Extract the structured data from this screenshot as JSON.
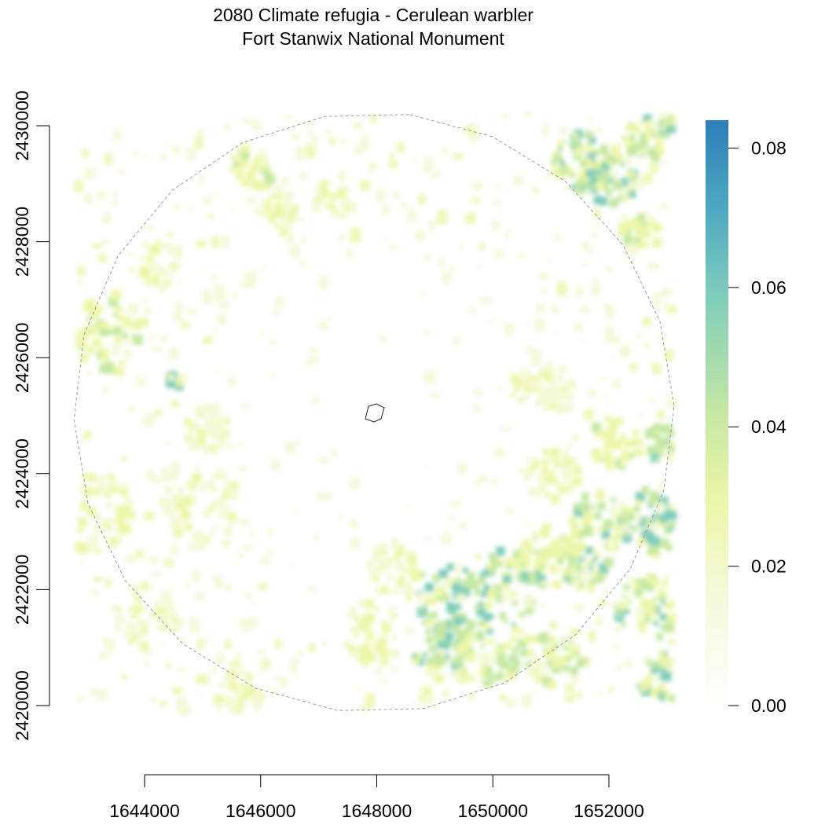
{
  "title": {
    "line1": "2080 Climate refugia - Cerulean warbler",
    "line2": "Fort Stanwix National Monument"
  },
  "x_axis": {
    "ticks": [
      1644000,
      1646000,
      1648000,
      1650000,
      1652000
    ],
    "labels": [
      "1644000",
      "1646000",
      "1648000",
      "1650000",
      "1652000"
    ]
  },
  "y_axis": {
    "ticks": [
      2420000,
      2422000,
      2424000,
      2426000,
      2428000,
      2430000
    ],
    "labels": [
      "2420000",
      "2422000",
      "2424000",
      "2426000",
      "2428000",
      "2430000"
    ]
  },
  "legend": {
    "ticks": [
      0.0,
      0.02,
      0.04,
      0.06,
      0.08
    ],
    "labels": [
      "0.00",
      "0.02",
      "0.04",
      "0.06",
      "0.08"
    ],
    "range": [
      0.0,
      0.084
    ],
    "colors": [
      "#ffffff",
      "#f3f8cc",
      "#ecf6a8",
      "#c7e9a1",
      "#7fcdbb",
      "#41a4c3",
      "#2c7fb8"
    ]
  },
  "chart_data": {
    "type": "heatmap",
    "x_range": [
      1642800,
      1653100
    ],
    "y_range": [
      2419900,
      2430200
    ],
    "value_range": [
      0.0,
      0.084
    ],
    "buffer_boundary": "circle-dashed",
    "monument_boundary": "polygon-solid"
  }
}
